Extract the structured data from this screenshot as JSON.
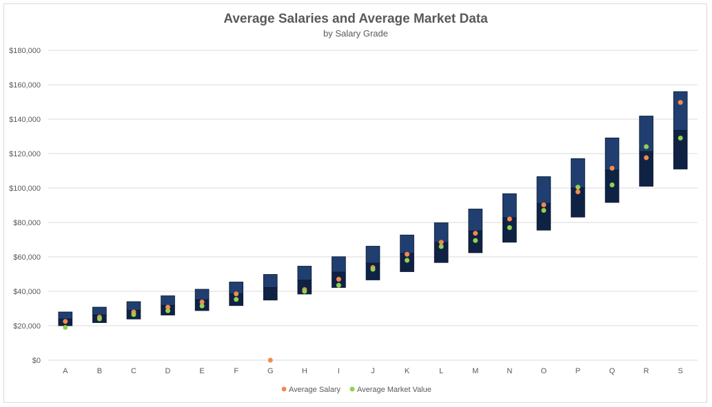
{
  "chart_data": {
    "type": "floating-bar-with-markers",
    "title": "Average Salaries and Average Market Data",
    "subtitle": "by Salary Grade",
    "xlabel": "",
    "ylabel": "",
    "ylim": [
      0,
      180000
    ],
    "ytick_values": [
      0,
      20000,
      40000,
      60000,
      80000,
      100000,
      120000,
      140000,
      160000,
      180000
    ],
    "yticks": [
      "$0",
      "$20,000",
      "$40,000",
      "$60,000",
      "$80,000",
      "$100,000",
      "$120,000",
      "$140,000",
      "$160,000",
      "$180,000"
    ],
    "grid": true,
    "legend_position": "bottom",
    "categories": [
      "A",
      "B",
      "C",
      "D",
      "E",
      "F",
      "G",
      "H",
      "I",
      "J",
      "K",
      "L",
      "M",
      "N",
      "O",
      "P",
      "Q",
      "R",
      "S"
    ],
    "ranges": {
      "min": [
        20000,
        21800,
        23900,
        26200,
        28800,
        31700,
        34900,
        38400,
        42200,
        46600,
        51400,
        56700,
        62400,
        68500,
        75500,
        83100,
        91600,
        101000,
        111000
      ],
      "mid": [
        24000,
        26300,
        29000,
        31900,
        35100,
        38600,
        42200,
        46500,
        51200,
        56400,
        62000,
        68300,
        75100,
        82700,
        91000,
        100100,
        110400,
        121200,
        133500
      ],
      "max": [
        28000,
        30800,
        34000,
        37400,
        41200,
        45400,
        49800,
        54600,
        60100,
        66200,
        72700,
        79800,
        87800,
        96700,
        106600,
        117100,
        129100,
        141800,
        156000
      ]
    },
    "series": [
      {
        "name": "Average Salary",
        "color": "#f4894d",
        "values": [
          22500,
          25000,
          28000,
          30800,
          33800,
          38500,
          0,
          41000,
          47000,
          53800,
          61500,
          68500,
          73700,
          82000,
          90200,
          97800,
          111500,
          117600,
          149700
        ]
      },
      {
        "name": "Average Market Value",
        "color": "#92d050",
        "values": [
          19000,
          24000,
          26500,
          28700,
          31500,
          35300,
          null,
          40000,
          43500,
          52800,
          58000,
          66000,
          69500,
          77000,
          87000,
          100500,
          101800,
          124000,
          129000
        ]
      }
    ],
    "colors": {
      "upper_band": "#203f70",
      "lower_band": "#102244",
      "band_edge": "#0b1630"
    }
  }
}
